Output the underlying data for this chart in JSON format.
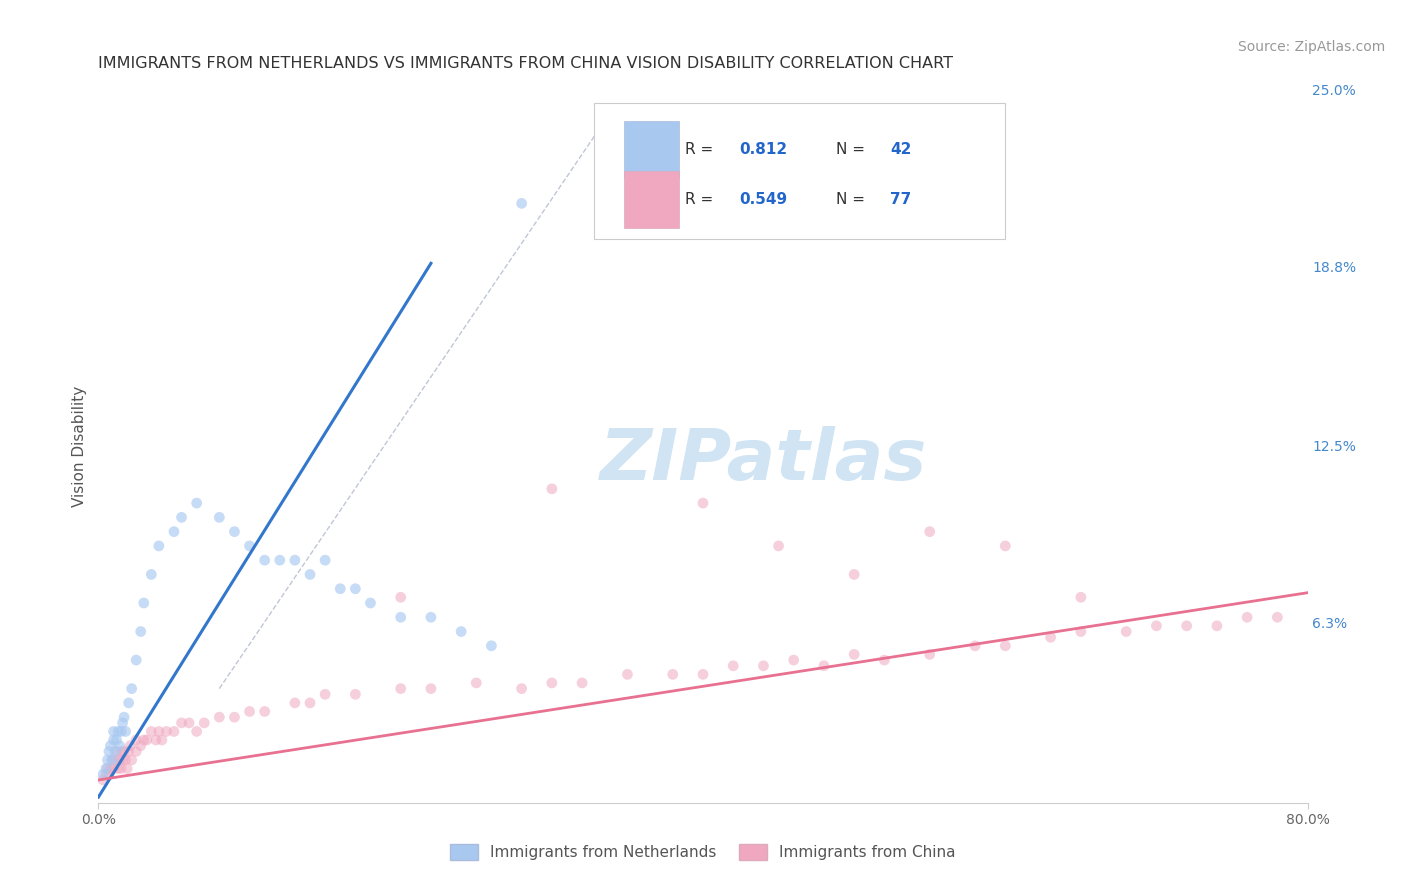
{
  "title": "IMMIGRANTS FROM NETHERLANDS VS IMMIGRANTS FROM CHINA VISION DISABILITY CORRELATION CHART",
  "source": "Source: ZipAtlas.com",
  "ylabel": "Vision Disability",
  "x_min": 0.0,
  "x_max": 0.8,
  "y_min": 0.0,
  "y_max": 0.25,
  "y_tick_labels_right": [
    "25.0%",
    "18.8%",
    "12.5%",
    "6.3%"
  ],
  "y_tick_positions_right": [
    0.25,
    0.188,
    0.125,
    0.063
  ],
  "netherlands_R": 0.812,
  "netherlands_N": 42,
  "china_R": 0.549,
  "china_N": 77,
  "netherlands_color": "#a8c8f0",
  "china_color": "#f0a8c0",
  "netherlands_line_color": "#3377cc",
  "china_line_color": "#e87090",
  "diag_line_color": "#b0b8cc",
  "background_color": "#ffffff",
  "grid_color": "#d0d8e8",
  "watermark": "ZIPatlas",
  "watermark_color": "#d0e4f4",
  "nl_x": [
    0.003,
    0.005,
    0.006,
    0.007,
    0.008,
    0.009,
    0.01,
    0.01,
    0.011,
    0.012,
    0.013,
    0.014,
    0.015,
    0.016,
    0.017,
    0.018,
    0.02,
    0.022,
    0.025,
    0.028,
    0.03,
    0.035,
    0.04,
    0.05,
    0.055,
    0.065,
    0.08,
    0.09,
    0.1,
    0.11,
    0.12,
    0.13,
    0.14,
    0.15,
    0.16,
    0.17,
    0.18,
    0.2,
    0.22,
    0.24,
    0.26,
    0.28
  ],
  "nl_y": [
    0.01,
    0.012,
    0.015,
    0.018,
    0.02,
    0.015,
    0.022,
    0.025,
    0.018,
    0.022,
    0.025,
    0.02,
    0.025,
    0.028,
    0.03,
    0.025,
    0.035,
    0.04,
    0.05,
    0.06,
    0.07,
    0.08,
    0.09,
    0.095,
    0.1,
    0.105,
    0.1,
    0.095,
    0.09,
    0.085,
    0.085,
    0.085,
    0.08,
    0.085,
    0.075,
    0.075,
    0.07,
    0.065,
    0.065,
    0.06,
    0.055,
    0.21
  ],
  "cn_x": [
    0.003,
    0.005,
    0.006,
    0.007,
    0.008,
    0.009,
    0.01,
    0.011,
    0.012,
    0.013,
    0.014,
    0.015,
    0.015,
    0.016,
    0.017,
    0.018,
    0.019,
    0.02,
    0.021,
    0.022,
    0.025,
    0.025,
    0.028,
    0.03,
    0.032,
    0.035,
    0.038,
    0.04,
    0.042,
    0.045,
    0.05,
    0.055,
    0.06,
    0.065,
    0.07,
    0.08,
    0.09,
    0.1,
    0.11,
    0.13,
    0.14,
    0.15,
    0.17,
    0.2,
    0.22,
    0.25,
    0.28,
    0.3,
    0.32,
    0.35,
    0.38,
    0.4,
    0.42,
    0.44,
    0.46,
    0.48,
    0.5,
    0.52,
    0.55,
    0.58,
    0.6,
    0.63,
    0.65,
    0.68,
    0.7,
    0.72,
    0.74,
    0.76,
    0.78,
    0.4,
    0.45,
    0.5,
    0.3,
    0.55,
    0.6,
    0.2,
    0.65
  ],
  "cn_y": [
    0.008,
    0.01,
    0.012,
    0.01,
    0.012,
    0.015,
    0.012,
    0.015,
    0.018,
    0.012,
    0.015,
    0.012,
    0.018,
    0.015,
    0.018,
    0.015,
    0.012,
    0.018,
    0.02,
    0.015,
    0.018,
    0.022,
    0.02,
    0.022,
    0.022,
    0.025,
    0.022,
    0.025,
    0.022,
    0.025,
    0.025,
    0.028,
    0.028,
    0.025,
    0.028,
    0.03,
    0.03,
    0.032,
    0.032,
    0.035,
    0.035,
    0.038,
    0.038,
    0.04,
    0.04,
    0.042,
    0.04,
    0.042,
    0.042,
    0.045,
    0.045,
    0.045,
    0.048,
    0.048,
    0.05,
    0.048,
    0.052,
    0.05,
    0.052,
    0.055,
    0.055,
    0.058,
    0.06,
    0.06,
    0.062,
    0.062,
    0.062,
    0.065,
    0.065,
    0.105,
    0.09,
    0.08,
    0.11,
    0.095,
    0.09,
    0.072,
    0.072
  ],
  "title_fontsize": 11.5,
  "source_fontsize": 10,
  "axis_label_fontsize": 11,
  "tick_fontsize": 10,
  "legend_fontsize": 11,
  "watermark_fontsize": 52,
  "scatter_size": 60,
  "nl_scatter_alpha": 0.65,
  "cn_scatter_alpha": 0.55
}
